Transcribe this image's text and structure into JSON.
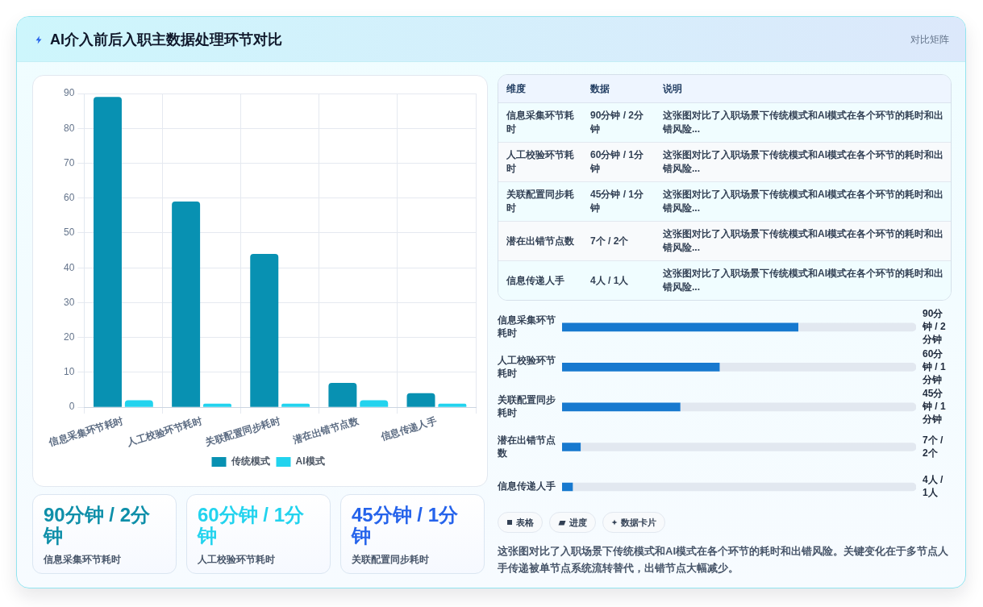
{
  "chart_data": [
    {
      "type": "other",
      "title": "AI介入前后入职主数据处理环节对比",
      "subtitle": "对比矩阵"
    },
    {
      "type": "bar",
      "categories": [
        "信息采集环节耗时",
        "人工校验环节耗时",
        "关联配置同步耗时",
        "潜在出错节点数",
        "信息传递人手"
      ],
      "series": [
        {
          "name": "传统模式",
          "color": "#0891b2",
          "values": [
            89,
            59,
            44,
            7,
            4
          ]
        },
        {
          "name": "AI模式",
          "color": "#22d3ee",
          "values": [
            2,
            1,
            1,
            2,
            1
          ]
        }
      ],
      "ylim": [
        0,
        90
      ],
      "yticks": [
        0,
        10,
        20,
        30,
        40,
        50,
        60,
        70,
        80,
        90
      ],
      "grid": true,
      "legend": "bottom"
    },
    {
      "type": "other",
      "categories": [
        "维度",
        "数据",
        "说明"
      ],
      "annotations": [
        "信息采集环节耗时",
        "90分钟 / 2分钟",
        "这张图对比了入职场景下传统模式和AI模式在各个环节的耗时和出错风险...",
        "人工校验环节耗时",
        "60分钟 / 1分钟",
        "这张图对比了入职场景下传统模式和AI模式在各个环节的耗时和出错风险...",
        "关联配置同步耗时",
        "45分钟 / 1分钟",
        "这张图对比了入职场景下传统模式和AI模式在各个环节的耗时和出错风险...",
        "潜在出错节点数",
        "7个 / 2个",
        "这张图对比了入职场景下传统模式和AI模式在各个环节的耗时和出错风险...",
        "信息传递人手",
        "4人 / 1人",
        "这张图对比了入职场景下传统模式和AI模式在各个环节的耗时和出错风险..."
      ]
    },
    {
      "type": "bar",
      "orientation": "horizontal",
      "stacked": true,
      "categories": [
        "信息采集环节耗时",
        "人工校验环节耗时",
        "关联配置同步耗时",
        "潜在出错节点数",
        "信息传递人手"
      ],
      "series": [
        {
          "color": "#1779cf",
          "values": [
            90,
            60,
            45,
            7,
            4
          ],
          "value_labels": [
            "90分钟 / 2分钟",
            "60分钟 / 1分钟",
            "45分钟 / 1分钟",
            "7个 / 2个",
            "4人 / 1人"
          ]
        },
        {
          "color": "#e2e8f0",
          "values": [
            45,
            75,
            90,
            128,
            131
          ]
        }
      ],
      "xlim": [
        0,
        135
      ],
      "tick_labels": "y"
    },
    {
      "type": "other",
      "categories": [
        "信息采集环节耗时",
        "人工校验环节耗时",
        "关联配置同步耗时"
      ],
      "annotations": [
        "90分钟 / 2分钟",
        "60分钟 / 1分钟",
        "45分钟 / 1分钟"
      ]
    },
    {
      "type": "other",
      "annotations": [
        "表格",
        "进度",
        "数据卡片",
        "这张图对比了入职场景下传统模式和AI模式在各个环节的耗时和出错风险。关键变化在于多节点人手传递被单节点系统流转替代，出错节点大幅减少。"
      ]
    }
  ]
}
